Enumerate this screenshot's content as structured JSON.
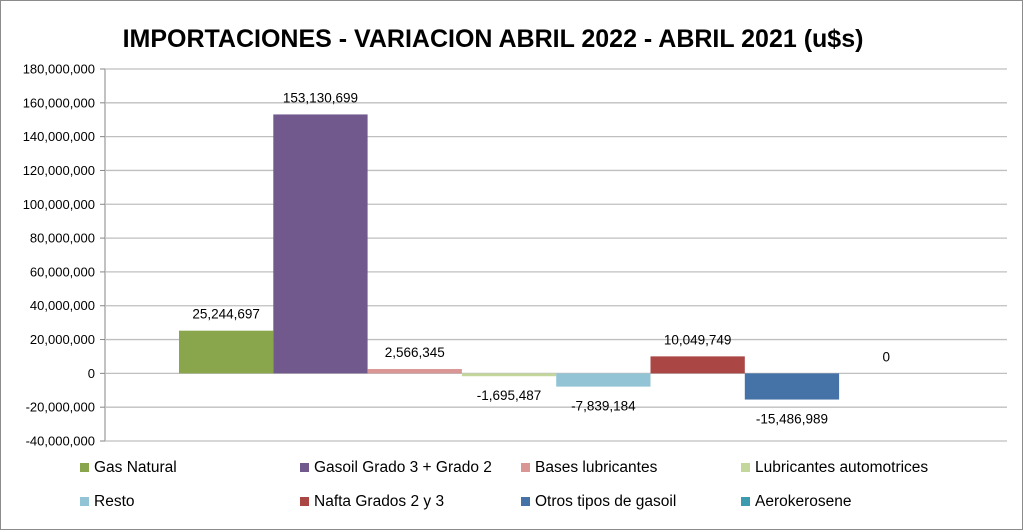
{
  "chart_data": {
    "type": "bar",
    "title": "IMPORTACIONES - VARIACION ABRIL 2022 - ABRIL 2021 (u$s)",
    "xlabel": "",
    "ylabel": "",
    "ylim": [
      -40000000,
      180000000
    ],
    "ytick_step": 20000000,
    "yticks": [
      "180,000,000",
      "160,000,000",
      "140,000,000",
      "120,000,000",
      "100,000,000",
      "80,000,000",
      "60,000,000",
      "40,000,000",
      "20,000,000",
      "0",
      "-20,000,000",
      "-40,000,000"
    ],
    "grid": true,
    "legend_position": "bottom",
    "series": [
      {
        "name": "Gas Natural",
        "value": 25244697,
        "label": "25,244,697",
        "color": "#8aa64c"
      },
      {
        "name": "Gasoil Grado 3 + Grado 2",
        "value": 153130699,
        "label": "153,130,699",
        "color": "#71598e"
      },
      {
        "name": "Bases lubricantes",
        "value": 2566345,
        "label": "2,566,345",
        "color": "#d99694"
      },
      {
        "name": "Lubricantes automotrices",
        "value": -1695487,
        "label": "-1,695,487",
        "color": "#c3d69b"
      },
      {
        "name": "Resto",
        "value": -7839184,
        "label": "-7,839,184",
        "color": "#93c4d6"
      },
      {
        "name": "Nafta Grados 2 y 3",
        "value": 10049749,
        "label": "10,049,749",
        "color": "#aa4644"
      },
      {
        "name": "Otros tipos de gasoil",
        "value": -15486989,
        "label": "-15,486,989",
        "color": "#4573a7"
      },
      {
        "name": "Aerokerosene",
        "value": 0,
        "label": "0",
        "color": "#3d9bb0"
      }
    ]
  }
}
